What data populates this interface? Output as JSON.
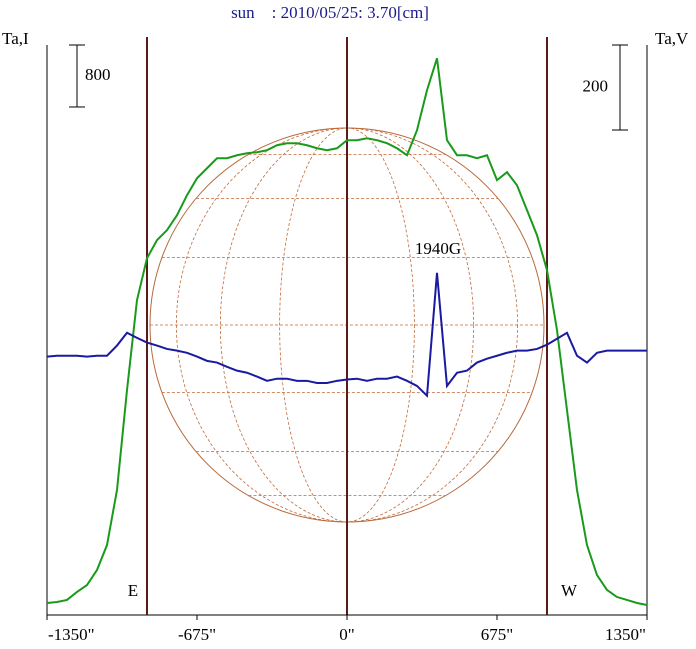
{
  "chart_data": {
    "type": "line",
    "title": "sun    : 2010/05/25: 3.70[cm]",
    "y_label": "Ta,I",
    "y2_label": "Ta,V",
    "y_scale_bar": 800,
    "y2_scale_bar": 200,
    "annotation": "1940G",
    "limb_lines": [
      {
        "x": -900,
        "label": "E"
      },
      {
        "x": 900,
        "label": "W"
      }
    ],
    "xlim": [
      -1350,
      1350
    ],
    "xticks": [
      {
        "value": -1350,
        "label": "-1350\""
      },
      {
        "value": -675,
        "label": "-675\""
      },
      {
        "value": 0,
        "label": "0\""
      },
      {
        "value": 675,
        "label": "675\""
      },
      {
        "value": 1350,
        "label": "1350\""
      }
    ],
    "ylim": [
      0,
      7460
    ],
    "y2lim": [
      -610,
      750
    ],
    "x": [
      -1350,
      -1305,
      -1260,
      -1215,
      -1170,
      -1125,
      -1080,
      -1035,
      -990,
      -945,
      -900,
      -855,
      -810,
      -765,
      -720,
      -675,
      -630,
      -585,
      -540,
      -495,
      -450,
      -405,
      -360,
      -315,
      -270,
      -225,
      -180,
      -135,
      -90,
      -45,
      0,
      45,
      90,
      135,
      180,
      225,
      270,
      315,
      360,
      405,
      450,
      495,
      540,
      585,
      630,
      675,
      720,
      765,
      810,
      855,
      900,
      945,
      990,
      1035,
      1080,
      1125,
      1170,
      1215,
      1260,
      1305,
      1350
    ],
    "series": [
      {
        "name": "I",
        "color": "#1a9a1a",
        "values": [
          155,
          168,
          194,
          297,
          387,
          581,
          903,
          1613,
          2903,
          4064,
          4605,
          4838,
          4967,
          5160,
          5418,
          5637,
          5766,
          5895,
          5895,
          5934,
          5960,
          5973,
          5999,
          6063,
          6089,
          6089,
          6063,
          6024,
          5999,
          6024,
          6128,
          6128,
          6153,
          6128,
          6089,
          6024,
          5934,
          6257,
          6773,
          7185,
          6128,
          5934,
          5934,
          5895,
          5934,
          5612,
          5715,
          5547,
          5225,
          4902,
          4451,
          3677,
          2645,
          1613,
          903,
          516,
          323,
          232,
          194,
          155,
          129
        ]
      },
      {
        "name": "V",
        "color": "#1a1aa0",
        "axis": "y2",
        "values": [
          -2,
          0,
          0,
          0,
          -2,
          0,
          0,
          24,
          54,
          42,
          31,
          24,
          16,
          12,
          7,
          -2,
          -12,
          -16,
          -26,
          -35,
          -40,
          -49,
          -59,
          -54,
          -54,
          -59,
          -59,
          -64,
          -64,
          -59,
          -56,
          -54,
          -59,
          -54,
          -54,
          -49,
          -59,
          -71,
          -94,
          195,
          -71,
          -40,
          -35,
          -16,
          -7,
          0,
          7,
          12,
          12,
          16,
          26,
          40,
          54,
          0,
          -16,
          7,
          12,
          12,
          12,
          12,
          12
        ]
      }
    ]
  }
}
